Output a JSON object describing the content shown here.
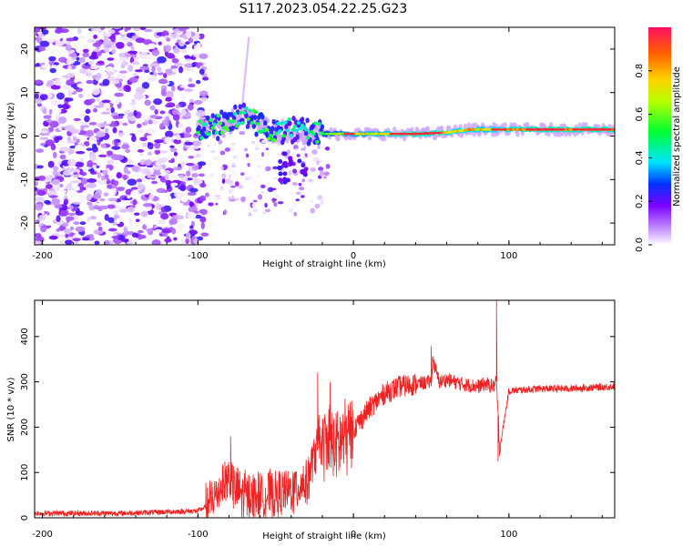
{
  "title": "S117.2023.054.22.25.G23",
  "chart_data": [
    {
      "type": "heatmap",
      "xlabel": "Height of straight line (km)",
      "ylabel": "Frequency (Hz)",
      "xlim": [
        -205,
        168
      ],
      "ylim": [
        -25,
        25
      ],
      "xticks": [
        -200,
        -100,
        0,
        100
      ],
      "yticks": [
        -20,
        -10,
        0,
        10,
        20
      ],
      "colorbar": {
        "label": "Normalized spectral amplitude",
        "range": [
          0,
          1
        ],
        "ticks": [
          "0.0",
          "0.2",
          "0.4",
          "0.6",
          "0.8"
        ],
        "colors": [
          "#ffffff",
          "#dcc0ff",
          "#7b00ff",
          "#0033ff",
          "#00e5ff",
          "#00ff30",
          "#b8ff00",
          "#ffd200",
          "#ff6000",
          "#ff1060"
        ]
      },
      "ridge": [
        {
          "x": -95,
          "f": 1.5,
          "a": 0.55
        },
        {
          "x": -80,
          "f": 3.0,
          "a": 0.55
        },
        {
          "x": -70,
          "f": 5.0,
          "a": 0.5
        },
        {
          "x": -60,
          "f": 2.5,
          "a": 0.6
        },
        {
          "x": -50,
          "f": 1.0,
          "a": 0.55
        },
        {
          "x": -40,
          "f": 1.5,
          "a": 0.45
        },
        {
          "x": -25,
          "f": 0.5,
          "a": 0.55
        },
        {
          "x": -10,
          "f": 0.5,
          "a": 0.7
        },
        {
          "x": 0,
          "f": 0.5,
          "a": 0.75
        },
        {
          "x": 20,
          "f": 0.5,
          "a": 0.8
        },
        {
          "x": 40,
          "f": 0.5,
          "a": 0.95
        },
        {
          "x": 60,
          "f": 0.8,
          "a": 0.85
        },
        {
          "x": 75,
          "f": 1.5,
          "a": 0.85
        },
        {
          "x": 85,
          "f": 1.5,
          "a": 0.8
        },
        {
          "x": 100,
          "f": 1.5,
          "a": 0.9
        },
        {
          "x": 120,
          "f": 1.5,
          "a": 0.95
        },
        {
          "x": 140,
          "f": 1.5,
          "a": 0.95
        },
        {
          "x": 160,
          "f": 1.5,
          "a": 0.95
        }
      ]
    },
    {
      "type": "line",
      "xlabel": "Height of straight line (km)",
      "ylabel": "SNR (10 * v/v)",
      "xlim": [
        -205,
        168
      ],
      "ylim": [
        0,
        480
      ],
      "xticks": [
        -200,
        -100,
        0,
        100
      ],
      "yticks": [
        0,
        100,
        200,
        300,
        400
      ],
      "series": [
        {
          "color": "#ee2222",
          "x": [
            -205,
            -150,
            -100,
            -92,
            -85,
            -80,
            -75,
            -70,
            -60,
            -50,
            -40,
            -30,
            -25,
            -23,
            -20,
            -15,
            -10,
            -5,
            0,
            10,
            20,
            30,
            40,
            50,
            51,
            55,
            60,
            70,
            80,
            85,
            90,
            92,
            94,
            100,
            120,
            140,
            168
          ],
          "y": [
            10,
            10,
            15,
            30,
            70,
            90,
            60,
            50,
            50,
            50,
            60,
            80,
            140,
            170,
            160,
            170,
            160,
            180,
            195,
            240,
            275,
            290,
            295,
            300,
            350,
            300,
            305,
            295,
            290,
            295,
            290,
            300,
            150,
            280,
            285,
            285,
            290
          ]
        }
      ],
      "spikes": [
        {
          "x": -79,
          "y": 180
        },
        {
          "x": -23,
          "y": 320
        },
        {
          "x": -15,
          "y": 300
        },
        {
          "x": 50,
          "y": 378
        },
        {
          "x": 92,
          "y": 480
        },
        {
          "x": 93,
          "y": 125
        }
      ]
    }
  ]
}
